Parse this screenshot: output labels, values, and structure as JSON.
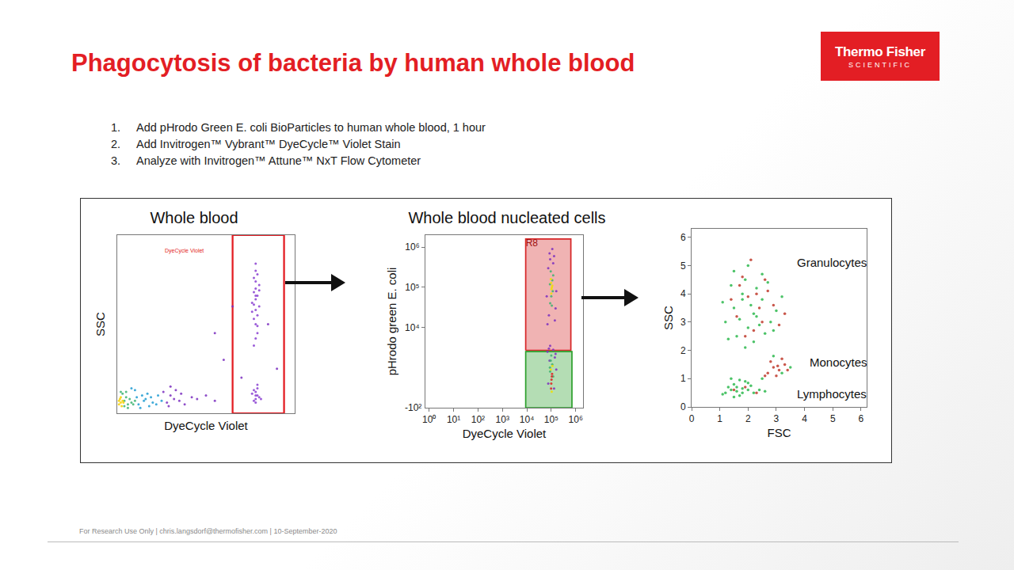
{
  "title": "Phagocytosis of bacteria by human whole blood",
  "logo": {
    "line1": "Thermo Fisher",
    "line2": "SCIENTIFIC"
  },
  "steps": [
    {
      "n": "1.",
      "text": "Add pHrodo Green E. coli BioParticles to human whole blood, 1 hour"
    },
    {
      "n": "2.",
      "text": "Add Invitrogen™ Vybrant™ DyeCycle™ Violet Stain"
    },
    {
      "n": "3.",
      "text": "Analyze with Invitrogen™ Attune™ NxT Flow Cytometer"
    }
  ],
  "footer": "For Research Use Only | chris.langsdorf@thermofisher.com | 10-September-2020",
  "chart_data": [
    {
      "type": "scatter",
      "title": "Whole blood",
      "x_label": "DyeCycle Violet",
      "y_label": "SSC",
      "xlim": [
        0,
        1
      ],
      "ylim": [
        0,
        1
      ],
      "tick_labels": false,
      "grid": false,
      "annotations": [
        {
          "text": "DyeCycle Violet",
          "x": 0.375,
          "y": 0.91,
          "color": "#e31e24"
        }
      ],
      "gates": [
        {
          "x": [
            0.65,
            0.94
          ],
          "y": [
            0,
            1
          ],
          "color": "#e31e24"
        }
      ],
      "series": [
        {
          "color": "#7b2fbf",
          "x": [
            0.28,
            0.32,
            0.3,
            0.35,
            0.26,
            0.38,
            0.33,
            0.42,
            0.29,
            0.36,
            0.45,
            0.5,
            0.3,
            0.55,
            0.6,
            0.7,
            0.85,
            0.9,
            0.55,
            0.65
          ],
          "y": [
            0.06,
            0.08,
            0.1,
            0.07,
            0.12,
            0.05,
            0.13,
            0.09,
            0.04,
            0.11,
            0.08,
            0.1,
            0.15,
            0.07,
            0.3,
            0.2,
            0.5,
            0.25,
            0.45,
            0.6
          ]
        },
        {
          "color": "#1f9bd1",
          "x": [
            0.12,
            0.15,
            0.18,
            0.14,
            0.2,
            0.11,
            0.17,
            0.22,
            0.13,
            0.16,
            0.25,
            0.19,
            0.1,
            0.08,
            0.23
          ],
          "y": [
            0.05,
            0.07,
            0.04,
            0.1,
            0.06,
            0.09,
            0.11,
            0.05,
            0.03,
            0.08,
            0.07,
            0.09,
            0.13,
            0.14,
            0.1
          ]
        },
        {
          "color": "#3cb371",
          "x": [
            0.04,
            0.06,
            0.05,
            0.08,
            0.03,
            0.07,
            0.09,
            0.05,
            0.1,
            0.06,
            0.02,
            0.04
          ],
          "y": [
            0.04,
            0.05,
            0.09,
            0.06,
            0.11,
            0.08,
            0.05,
            0.12,
            0.07,
            0.03,
            0.12,
            0.07
          ]
        },
        {
          "color": "#f5d000",
          "x": [
            0.01,
            0.02,
            0.03,
            0.015,
            0.025,
            0.02,
            0.035,
            0.01
          ],
          "y": [
            0.05,
            0.06,
            0.07,
            0.08,
            0.04,
            0.09,
            0.06,
            0.07
          ]
        },
        {
          "color": "#8a3fd1",
          "x": [
            0.77,
            0.78,
            0.79,
            0.78,
            0.77,
            0.79,
            0.78,
            0.8,
            0.76,
            0.78,
            0.79,
            0.77,
            0.78,
            0.8,
            0.78,
            0.77,
            0.79,
            0.78,
            0.76,
            0.79,
            0.78,
            0.77,
            0.8,
            0.78
          ],
          "y": [
            0.38,
            0.42,
            0.45,
            0.5,
            0.53,
            0.55,
            0.58,
            0.6,
            0.62,
            0.64,
            0.66,
            0.68,
            0.7,
            0.72,
            0.74,
            0.76,
            0.78,
            0.8,
            0.57,
            0.49,
            0.84,
            0.61,
            0.69,
            0.66
          ]
        },
        {
          "color": "#8a3fd1",
          "x": [
            0.77,
            0.78,
            0.79,
            0.78,
            0.8,
            0.76,
            0.78,
            0.79,
            0.77,
            0.78,
            0.81,
            0.79
          ],
          "y": [
            0.07,
            0.08,
            0.1,
            0.12,
            0.09,
            0.11,
            0.06,
            0.14,
            0.13,
            0.1,
            0.08,
            0.16
          ]
        }
      ]
    },
    {
      "type": "scatter",
      "title": "Whole blood nucleated cells",
      "x_label": "DyeCycle Violet",
      "y_label": "pHrodo green E. coli",
      "log": true,
      "grid": false,
      "xlim": [
        0.7,
        2000000
      ],
      "ylim": [
        100,
        2000000
      ],
      "xticks": [
        {
          "value": 1,
          "label": "10⁰"
        },
        {
          "value": 10,
          "label": "10¹"
        },
        {
          "value": 100,
          "label": "10²"
        },
        {
          "value": 1000,
          "label": "10³"
        },
        {
          "value": 10000,
          "label": "10⁴"
        },
        {
          "value": 100000,
          "label": "10⁵"
        },
        {
          "value": 1000000,
          "label": "10⁶"
        }
      ],
      "yticks": [
        {
          "value": 10000,
          "label": "10⁴"
        },
        {
          "value": 100000,
          "label": "10⁵"
        },
        {
          "value": 1000000,
          "label": "10⁶"
        }
      ],
      "annotations": [
        {
          "text": "-10²",
          "y": 100
        }
      ],
      "gates": [
        {
          "label": "R8",
          "x": [
            9000,
            630000
          ],
          "y": [
            2700,
            1600000
          ],
          "color": "#d62728"
        },
        {
          "x": [
            9000,
            700000
          ],
          "y": [
            100,
            2500
          ],
          "color": "#2ca02c"
        }
      ],
      "series": [
        {
          "color": "#7b2fbf",
          "x": [
            70000,
            80000,
            90000,
            130000,
            150000,
            75000,
            140000,
            85000,
            120000,
            160000,
            65000,
            110000
          ],
          "y": [
            12000,
            20000,
            500000,
            600000,
            30000,
            300000,
            15000,
            700000,
            400000,
            80000,
            60000,
            900000
          ]
        },
        {
          "color": "#3cb371",
          "x": [
            90000,
            100000,
            110000,
            95000,
            105000,
            115000,
            88000,
            120000
          ],
          "y": [
            40000,
            60000,
            150000,
            250000,
            35000,
            80000,
            120000,
            200000
          ]
        },
        {
          "color": "#f0e000",
          "x": [
            100000,
            105000,
            98000,
            102000,
            110000,
            96000
          ],
          "y": [
            70000,
            100000,
            130000,
            90000,
            110000,
            160000
          ]
        },
        {
          "color": "#7b2fbf",
          "x": [
            70000,
            80000,
            140000,
            150000,
            75000,
            130000,
            90000,
            160000,
            120000,
            85000
          ],
          "y": [
            2500,
            3000,
            1800,
            2200,
            400,
            300,
            3500,
            900,
            2800,
            1500
          ]
        },
        {
          "color": "#3cb371",
          "x": [
            90000,
            110000,
            95000,
            120000,
            100000,
            88000
          ],
          "y": [
            800,
            1200,
            1500,
            600,
            2000,
            1000
          ]
        },
        {
          "color": "#f0e000",
          "x": [
            96000,
            112000,
            104000
          ],
          "y": [
            900,
            1100,
            250
          ]
        },
        {
          "color": "#e02020",
          "x": [
            100000,
            105000,
            98000,
            102000,
            108000
          ],
          "y": [
            400,
            600,
            300,
            500,
            700
          ]
        }
      ]
    },
    {
      "type": "scatter",
      "x_label": "FSC",
      "y_label": "SSC",
      "grid": false,
      "xlim": [
        0,
        6.2
      ],
      "ylim": [
        0,
        6.3
      ],
      "xticks": [
        0,
        1,
        2,
        3,
        4,
        5,
        6
      ],
      "yticks": [
        0,
        1,
        2,
        3,
        4,
        5,
        6
      ],
      "annotations": [
        {
          "text": "Granulocytes",
          "x": 4.96,
          "y": 5.1
        },
        {
          "text": "Monocytes",
          "x": 5.2,
          "y": 1.57
        },
        {
          "text": "Lymphocytes",
          "x": 4.96,
          "y": 0.45
        }
      ],
      "series": [
        {
          "color": "#2db84d",
          "x": [
            1.2,
            1.5,
            1.8,
            2.0,
            2.2,
            2.5,
            2.8,
            1.6,
            1.9,
            2.3,
            2.6,
            1.4,
            2.1,
            1.7,
            2.4,
            3.0,
            1.3,
            2.0,
            2.7,
            1.8,
            2.2,
            1.5,
            2.9,
            2.5,
            1.1,
            3.2,
            1.9,
            2.3
          ],
          "y": [
            3.0,
            3.5,
            4.0,
            2.8,
            3.3,
            3.8,
            3.0,
            2.5,
            4.5,
            4.2,
            2.6,
            4.3,
            3.6,
            3.1,
            2.9,
            3.4,
            2.4,
            5.0,
            4.4,
            3.8,
            2.3,
            4.8,
            2.7,
            4.7,
            3.7,
            3.9,
            2.1,
            3.2
          ]
        },
        {
          "color": "#c0392b",
          "x": [
            1.6,
            2.0,
            2.4,
            2.7,
            1.8,
            2.2,
            2.9,
            2.5,
            1.4,
            2.1,
            3.1,
            2.6,
            1.9,
            2.3,
            3.3,
            1.7
          ],
          "y": [
            3.2,
            3.9,
            3.5,
            4.1,
            4.6,
            2.7,
            3.6,
            3.0,
            3.8,
            5.2,
            2.9,
            4.5,
            2.5,
            4.0,
            3.3,
            4.3
          ]
        },
        {
          "color": "#2db84d",
          "x": [
            2.5,
            3.5,
            2.9,
            3.2
          ],
          "y": [
            1.0,
            1.4,
            1.8,
            1.2
          ]
        },
        {
          "color": "#c0392b",
          "x": [
            2.7,
            2.9,
            3.1,
            3.3,
            3.0,
            2.8,
            3.2,
            3.4,
            2.6,
            3.05
          ],
          "y": [
            1.2,
            1.4,
            1.3,
            1.5,
            1.1,
            1.6,
            1.7,
            1.3,
            1.1,
            1.45
          ]
        },
        {
          "color": "#2db84d",
          "x": [
            1.2,
            1.4,
            1.6,
            1.8,
            2.0,
            1.5,
            1.7,
            1.9,
            2.2,
            1.3,
            1.6,
            2.1,
            1.8,
            2.4,
            1.1,
            1.5,
            2.0,
            1.7,
            2.6,
            1.4
          ],
          "y": [
            0.5,
            0.6,
            0.7,
            0.5,
            0.6,
            0.8,
            0.4,
            0.9,
            0.5,
            0.7,
            0.55,
            0.75,
            0.65,
            0.6,
            0.45,
            0.35,
            0.85,
            0.95,
            0.55,
            1.0
          ]
        },
        {
          "color": "#c0392b",
          "x": [
            1.5,
            1.9,
            2.3
          ],
          "y": [
            0.6,
            0.7,
            0.5
          ]
        }
      ]
    }
  ]
}
